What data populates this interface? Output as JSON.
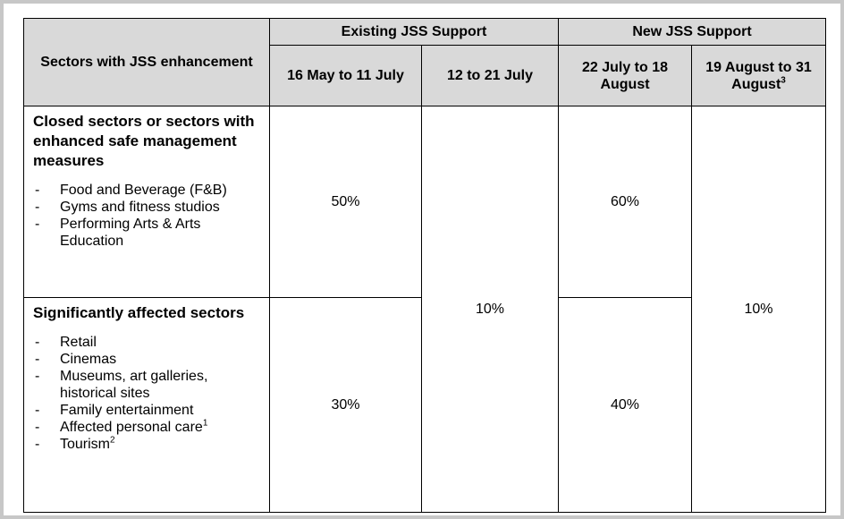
{
  "header": {
    "sector_col": "Sectors with JSS enhancement",
    "existing_group": "Existing JSS Support",
    "new_group": "New JSS Support",
    "periods": [
      {
        "label": "16 May to 11 July",
        "sup": ""
      },
      {
        "label": "12 to 21 July",
        "sup": ""
      },
      {
        "label": "22 July to 18 August",
        "sup": ""
      },
      {
        "label": "19 August to 31 August",
        "sup": "3"
      }
    ]
  },
  "rows": [
    {
      "heading": "Closed sectors or sectors with enhanced safe management measures",
      "items": [
        {
          "text": "Food and Beverage (F&B)",
          "sup": ""
        },
        {
          "text": "Gyms and fitness studios",
          "sup": ""
        },
        {
          "text": "Performing Arts & Arts Education",
          "sup": ""
        }
      ],
      "existing_first": "50%",
      "new_first": "60%"
    },
    {
      "heading": "Significantly affected sectors",
      "items": [
        {
          "text": "Retail",
          "sup": ""
        },
        {
          "text": "Cinemas",
          "sup": ""
        },
        {
          "text": "Museums, art galleries, historical sites",
          "sup": ""
        },
        {
          "text": "Family entertainment",
          "sup": ""
        },
        {
          "text": "Affected personal care",
          "sup": "1"
        },
        {
          "text": "Tourism",
          "sup": "2"
        }
      ],
      "existing_first": "30%",
      "new_first": "40%"
    }
  ],
  "shared": {
    "existing_second": "10%",
    "new_second": "10%"
  }
}
